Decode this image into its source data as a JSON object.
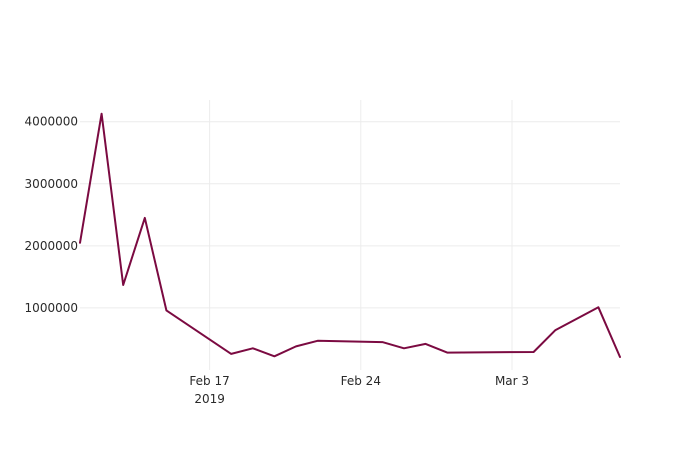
{
  "chart_data": {
    "type": "line",
    "title": "",
    "xlabel": "",
    "ylabel": "",
    "grid": true,
    "legend": "none",
    "x_axis": {
      "type": "date",
      "range": [
        "2019-02-11",
        "2019-03-08"
      ],
      "ticks": [
        {
          "date": "2019-02-17",
          "label": "Feb 17",
          "sublabel": "2019"
        },
        {
          "date": "2019-02-24",
          "label": "Feb 24",
          "sublabel": ""
        },
        {
          "date": "2019-03-03",
          "label": "Mar 3",
          "sublabel": ""
        }
      ]
    },
    "y_axis": {
      "range": [
        0,
        4350000
      ],
      "ticks": [
        {
          "value": 1000000,
          "label": "1000000"
        },
        {
          "value": 2000000,
          "label": "2000000"
        },
        {
          "value": 3000000,
          "label": "3000000"
        },
        {
          "value": 4000000,
          "label": "4000000"
        }
      ]
    },
    "series": [
      {
        "color": "#7b0a41",
        "points": [
          {
            "x": "2019-02-11",
            "y": 2050000
          },
          {
            "x": "2019-02-12",
            "y": 4130000
          },
          {
            "x": "2019-02-13",
            "y": 1370000
          },
          {
            "x": "2019-02-14",
            "y": 2450000
          },
          {
            "x": "2019-02-15",
            "y": 960000
          },
          {
            "x": "2019-02-18",
            "y": 260000
          },
          {
            "x": "2019-02-19",
            "y": 350000
          },
          {
            "x": "2019-02-20",
            "y": 220000
          },
          {
            "x": "2019-02-21",
            "y": 380000
          },
          {
            "x": "2019-02-22",
            "y": 470000
          },
          {
            "x": "2019-02-25",
            "y": 450000
          },
          {
            "x": "2019-02-26",
            "y": 350000
          },
          {
            "x": "2019-02-27",
            "y": 420000
          },
          {
            "x": "2019-02-28",
            "y": 280000
          },
          {
            "x": "2019-03-04",
            "y": 290000
          },
          {
            "x": "2019-03-05",
            "y": 640000
          },
          {
            "x": "2019-03-07",
            "y": 1010000
          },
          {
            "x": "2019-03-08",
            "y": 210000
          }
        ]
      }
    ]
  }
}
